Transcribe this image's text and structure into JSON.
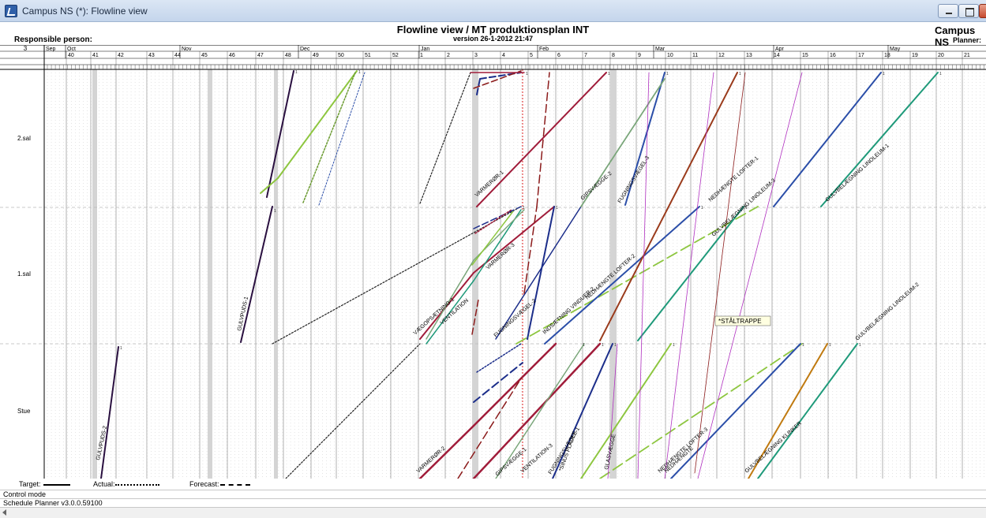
{
  "window": {
    "title": "Campus NS (*): Flowline view"
  },
  "header": {
    "title": "Flowline view / MT produktionsplan INT",
    "version": "version 26-1-2012 21:47",
    "responsible_label": "Responsible person:",
    "project": "Campus NS",
    "planner_label": "Planner:"
  },
  "calendar": {
    "corner": "3",
    "months": [
      "Sep",
      "Oct",
      "Nov",
      "Dec",
      "Jan",
      "Feb",
      "Mar",
      "Apr",
      "May"
    ],
    "weeks": [
      "40",
      "41",
      "42",
      "43",
      "44",
      "45",
      "46",
      "47",
      "48",
      "49",
      "50",
      "51",
      "52",
      "1",
      "2",
      "3",
      "4",
      "5",
      "6",
      "7",
      "8",
      "9",
      "10",
      "11",
      "12",
      "13",
      "14",
      "15",
      "16",
      "17",
      "18",
      "19",
      "20",
      "21"
    ]
  },
  "floors": [
    "2.sal",
    "1.sal",
    "Stue"
  ],
  "tooltip": "*STÅLTRAPPE",
  "legend": {
    "target": "Target:",
    "actual": "Actual:",
    "forecast": "Forecast:"
  },
  "status": {
    "mode": "Control mode",
    "version": "Schedule Planner v3.0.0.59100"
  },
  "colors": {
    "dark_purple": "#2a1040",
    "lime": "#8dc63f",
    "maroon": "#a01c3a",
    "dark_red": "#8b1a1a",
    "teal": "#1f9a7a",
    "blue": "#2b4ea8",
    "navy": "#1c2e8a",
    "brown": "#9a3b1c",
    "orange": "#c07a10",
    "magenta": "#b030c0",
    "olive": "#6a9a30",
    "gray_green": "#7aa67a",
    "today_marker": "#e02020"
  },
  "tasks": [
    {
      "label": "GULVPUDS-2"
    },
    {
      "label": "GULVPUDS-1"
    },
    {
      "label": "VENTILATION"
    },
    {
      "label": "VARMERØR-1"
    },
    {
      "label": "VARMERØR-2"
    },
    {
      "label": "VARMERØR-3"
    },
    {
      "label": "VÆGOPSÆTNING-1"
    },
    {
      "label": "FUGNINGSVÆGEL-2"
    },
    {
      "label": "FUGNINGSVÆGEL-3"
    },
    {
      "label": "GIPSVÆGGE-1"
    },
    {
      "label": "GIPSVÆGGE-2"
    },
    {
      "label": "INDSÆTNING VINDUER-2"
    },
    {
      "label": "VENTILATION-3"
    },
    {
      "label": "FUGNINGSVÆGEL-1"
    },
    {
      "label": "*SINUS PLADER"
    },
    {
      "label": "GLASVÆGGE"
    },
    {
      "label": "NEDHÆNGTE LOFTER-1"
    },
    {
      "label": "NEDHÆNGTE LOFTER-2"
    },
    {
      "label": "NEDHÆNGTE LOFTER-3"
    },
    {
      "label": "GULVBELÆGNING LINOLEUM-1"
    },
    {
      "label": "GULVBELÆGNING LINOLEUM-2"
    },
    {
      "label": "GULVBELÆGNING LINOLEUM-3"
    },
    {
      "label": "GULVBELÆGNING KLINKER"
    },
    {
      "label": "NEDHÆNGTE"
    }
  ]
}
